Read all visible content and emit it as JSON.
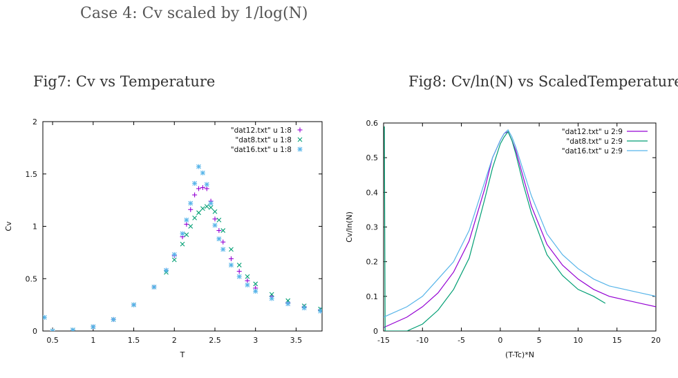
{
  "heading": "Case 4: Cv scaled by 1/log(N)",
  "fig7_caption": "Fig7: Cv vs Temperature",
  "fig8_caption": "Fig8: Cv/ln(N) vs ScaledTemperature",
  "chart_data": [
    {
      "type": "scatter",
      "xlabel": "T",
      "ylabel": "Cv",
      "xlim": [
        0.38,
        3.82
      ],
      "ylim": [
        0,
        2
      ],
      "xticks": [
        0.5,
        1,
        1.5,
        2,
        2.5,
        3,
        3.5
      ],
      "yticks": [
        0,
        0.5,
        1,
        1.5,
        2
      ],
      "legend_position": "top-right",
      "series": [
        {
          "name": "\"dat12.txt\" u 1:8",
          "color": "#9400d3",
          "marker": "+",
          "x": [
            0.5,
            0.75,
            1.0,
            1.25,
            1.5,
            1.75,
            1.9,
            2.0,
            2.1,
            2.15,
            2.2,
            2.25,
            2.3,
            2.35,
            2.4,
            2.45,
            2.5,
            2.55,
            2.6,
            2.7,
            2.8,
            2.9,
            3.0,
            3.2,
            3.4,
            3.6,
            3.8
          ],
          "y": [
            0.0,
            0.01,
            0.04,
            0.11,
            0.25,
            0.42,
            0.58,
            0.72,
            0.9,
            1.02,
            1.16,
            1.3,
            1.36,
            1.37,
            1.36,
            1.24,
            1.07,
            0.96,
            0.85,
            0.69,
            0.57,
            0.48,
            0.41,
            0.33,
            0.27,
            0.23,
            0.2
          ]
        },
        {
          "name": "\"dat8.txt\" u 1:8",
          "color": "#009e73",
          "marker": "x",
          "x": [
            0.5,
            0.75,
            1.0,
            1.25,
            1.5,
            1.75,
            1.9,
            2.0,
            2.1,
            2.15,
            2.2,
            2.25,
            2.3,
            2.35,
            2.4,
            2.45,
            2.5,
            2.55,
            2.6,
            2.7,
            2.8,
            2.9,
            3.0,
            3.2,
            3.4,
            3.6,
            3.8
          ],
          "y": [
            0.0,
            0.01,
            0.04,
            0.11,
            0.25,
            0.42,
            0.56,
            0.68,
            0.83,
            0.92,
            1.0,
            1.08,
            1.13,
            1.17,
            1.19,
            1.18,
            1.14,
            1.06,
            0.96,
            0.78,
            0.63,
            0.52,
            0.45,
            0.35,
            0.29,
            0.24,
            0.21
          ]
        },
        {
          "name": "\"dat16.txt\" u 1:8",
          "color": "#56b4e9",
          "marker": "*",
          "x": [
            0.4,
            0.5,
            0.75,
            1.0,
            1.25,
            1.5,
            1.75,
            1.9,
            2.0,
            2.1,
            2.15,
            2.2,
            2.25,
            2.3,
            2.35,
            2.4,
            2.45,
            2.5,
            2.55,
            2.6,
            2.7,
            2.8,
            2.9,
            3.0,
            3.2,
            3.4,
            3.6,
            3.8
          ],
          "y": [
            0.13,
            0.0,
            0.01,
            0.04,
            0.11,
            0.25,
            0.42,
            0.58,
            0.73,
            0.93,
            1.06,
            1.22,
            1.41,
            1.57,
            1.51,
            1.4,
            1.22,
            1.01,
            0.88,
            0.78,
            0.63,
            0.52,
            0.44,
            0.38,
            0.31,
            0.26,
            0.22,
            0.19
          ]
        }
      ]
    },
    {
      "type": "line",
      "xlabel": "(T-Tc)*N",
      "ylabel": "Cv/ln(N)",
      "xlim": [
        -15,
        20
      ],
      "ylim": [
        0,
        0.6
      ],
      "xticks": [
        -15,
        -10,
        -5,
        0,
        5,
        10,
        15,
        20
      ],
      "yticks": [
        0,
        0.1,
        0.2,
        0.3,
        0.4,
        0.5,
        0.6
      ],
      "legend_position": "top-right",
      "series": [
        {
          "name": "\"dat12.txt\" u 2:9",
          "color": "#9400d3",
          "x": [
            -15,
            -12,
            -10,
            -8,
            -6,
            -4,
            -2,
            -1,
            0,
            0.5,
            1,
            1.5,
            2,
            3,
            4,
            6,
            8,
            10,
            12,
            14,
            16,
            18,
            20
          ],
          "y": [
            0.01,
            0.04,
            0.07,
            0.11,
            0.17,
            0.26,
            0.41,
            0.5,
            0.55,
            0.57,
            0.575,
            0.55,
            0.52,
            0.44,
            0.36,
            0.25,
            0.19,
            0.15,
            0.12,
            0.1,
            0.09,
            0.08,
            0.07
          ]
        },
        {
          "name": "\"dat8.txt\" u 2:9",
          "color": "#009e73",
          "x": [
            -14.9,
            -14.8,
            -14,
            -12,
            -10,
            -8,
            -6,
            -4,
            -2,
            -1,
            0,
            0.5,
            1,
            1.5,
            2,
            3,
            4,
            6,
            8,
            10,
            12,
            13.5
          ],
          "y": [
            0.59,
            0.0,
            0.0,
            0.0,
            0.02,
            0.06,
            0.12,
            0.21,
            0.38,
            0.47,
            0.54,
            0.56,
            0.575,
            0.55,
            0.51,
            0.42,
            0.34,
            0.22,
            0.16,
            0.12,
            0.1,
            0.08
          ]
        },
        {
          "name": "\"dat16.txt\" u 2:9",
          "color": "#56b4e9",
          "x": [
            -15,
            -12,
            -10,
            -8,
            -6,
            -4,
            -2,
            -1,
            0,
            0.5,
            1,
            1.5,
            2,
            3,
            4,
            6,
            8,
            10,
            12,
            14,
            16,
            18,
            20
          ],
          "y": [
            0.04,
            0.07,
            0.1,
            0.15,
            0.2,
            0.29,
            0.43,
            0.5,
            0.55,
            0.57,
            0.58,
            0.56,
            0.53,
            0.46,
            0.39,
            0.28,
            0.22,
            0.18,
            0.15,
            0.13,
            0.12,
            0.11,
            0.1
          ]
        }
      ]
    }
  ]
}
